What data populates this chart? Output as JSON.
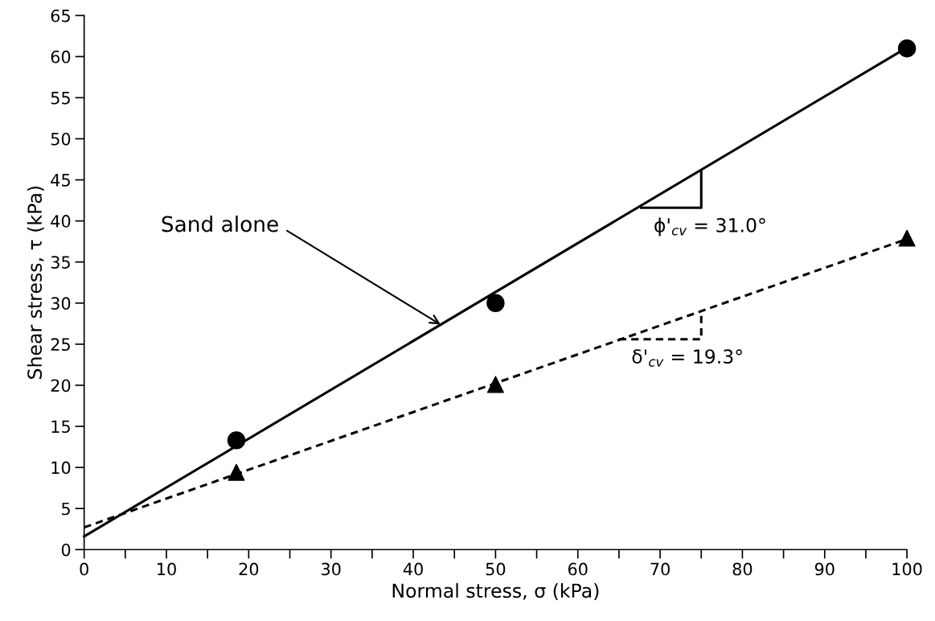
{
  "chart_data": {
    "type": "scatter",
    "xlabel": "Normal stress, σ (kPa)",
    "ylabel": "Shear stress, τ (kPa)",
    "xlim": [
      0,
      100
    ],
    "ylim": [
      0,
      65
    ],
    "xticks": [
      0,
      {
        "value": 5,
        "label": null
      },
      10,
      {
        "value": 15,
        "label": null
      },
      20,
      {
        "value": 25,
        "label": null
      },
      30,
      {
        "value": 35,
        "label": null
      },
      40,
      {
        "value": 45,
        "label": null
      },
      50,
      {
        "value": 55,
        "label": null
      },
      60,
      {
        "value": 65,
        "label": null
      },
      70,
      {
        "value": 75,
        "label": null
      },
      80,
      {
        "value": 85,
        "label": null
      },
      90,
      {
        "value": 95,
        "label": null
      },
      100
    ],
    "yticks": [
      0,
      5,
      10,
      15,
      20,
      25,
      30,
      35,
      40,
      45,
      50,
      55,
      60,
      65
    ],
    "grid": false,
    "legend": false,
    "series": [
      {
        "type": "line",
        "x": [
          0,
          100
        ],
        "values": [
          1.6,
          61.1
        ],
        "color": "#000000",
        "line_style": "solid",
        "marker": "none"
      },
      {
        "type": "line",
        "x": [
          0,
          100
        ],
        "values": [
          2.7,
          37.8
        ],
        "color": "#000000",
        "line_style": "dashed",
        "marker": "none"
      },
      {
        "x": [
          18.5,
          50,
          100
        ],
        "values": [
          13.3,
          30,
          61
        ],
        "color": "#000000",
        "marker": "circle"
      },
      {
        "x": [
          18.5,
          50,
          100
        ],
        "values": [
          9.4,
          20.1,
          37.9
        ],
        "color": "#000000",
        "marker": "triangle"
      },
      {
        "type": "line",
        "x": [
          67.7,
          75,
          75
        ],
        "values": [
          41.6,
          41.6,
          46
        ],
        "color": "#000000",
        "line_style": "solid",
        "marker": "none"
      },
      {
        "type": "line",
        "x": [
          65,
          75,
          75
        ],
        "values": [
          25.6,
          25.6,
          29
        ],
        "color": "#000000",
        "line_style": "dashed",
        "marker": "none"
      }
    ],
    "annotations": [
      {
        "text": "Sand alone",
        "x": 43.3,
        "y": 27.4
      },
      {
        "text": "ϕ'$_{cv}$ = 31.0°",
        "x": 67.7,
        "y": 41.6
      },
      {
        "text": "δ'$_{cv}$ = 19.3°",
        "x": 65,
        "y": 25.6
      }
    ]
  }
}
